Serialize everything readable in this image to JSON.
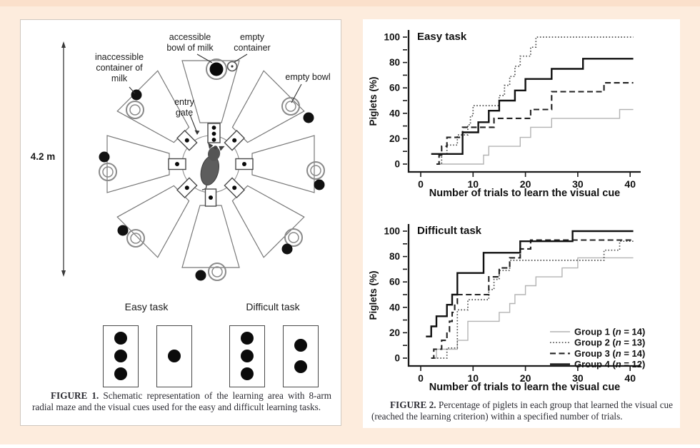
{
  "colors": {
    "page_bg": "#fdecdd",
    "top_strip": "#fbe0cb",
    "panel_bg": "#ffffff",
    "line_group1": "#b3b3b3",
    "line_group2": "#4d4d4d",
    "line_group3": "#222222",
    "line_group4": "#111111"
  },
  "figure1": {
    "scale_label": "4.2 m",
    "maze_labels": {
      "inaccessible": [
        "inaccessible",
        "container of",
        "milk"
      ],
      "accessible": [
        "accessible",
        "bowl of milk"
      ],
      "empty_container": [
        "empty",
        "container"
      ],
      "empty_bowl": [
        "empty bowl"
      ],
      "entry_gate": [
        "entry",
        "gate"
      ]
    },
    "tasks": {
      "easy": {
        "title": "Easy task",
        "cards": [
          3,
          1
        ]
      },
      "difficult": {
        "title": "Difficult task",
        "cards": [
          3,
          2
        ]
      }
    },
    "caption": {
      "lead": "FIGURE 1.",
      "text": "Schematic representation of the learning area with 8-arm radial maze and the visual cues used for the easy and difficult learning tasks."
    }
  },
  "figure2": {
    "caption": {
      "lead": "FIGURE 2.",
      "text": "Percentage of piglets in each group that learned the visual cue (reached the learning criterion) within a specified number of trials."
    }
  },
  "chart_data": [
    {
      "type": "line",
      "subtype": "step-cumulative",
      "title": "Easy task",
      "xlabel": "Number of trials to learn the visual cue",
      "ylabel": "Piglets (%)",
      "xlim": [
        0,
        40
      ],
      "ylim": [
        0,
        100
      ],
      "xticks": [
        0,
        10,
        20,
        30,
        40
      ],
      "yticks": [
        0,
        20,
        40,
        60,
        80,
        100
      ],
      "yticks_minor": [
        10,
        30,
        50,
        70,
        90
      ],
      "grid": false,
      "legend": {
        "show": false
      },
      "series": [
        {
          "name": "Group 1 (n = 14)",
          "label_parts": [
            "Group 1 (",
            "n",
            " = 14)"
          ],
          "style": "light-solid",
          "points": [
            [
              3,
              0
            ],
            [
              12,
              7
            ],
            [
              13,
              14
            ],
            [
              19,
              21
            ],
            [
              21,
              29
            ],
            [
              25,
              36
            ],
            [
              38,
              43
            ]
          ]
        },
        {
          "name": "Group 2 (n = 13)",
          "label_parts": [
            "Group 2 (",
            "n",
            " = 13)"
          ],
          "style": "dotted",
          "points": [
            [
              3.5,
              0
            ],
            [
              4,
              8
            ],
            [
              5,
              15
            ],
            [
              7,
              23
            ],
            [
              9,
              31
            ],
            [
              9.5,
              38
            ],
            [
              10,
              46
            ],
            [
              15,
              54
            ],
            [
              16,
              62
            ],
            [
              17,
              69
            ],
            [
              18,
              77
            ],
            [
              19,
              85
            ],
            [
              21,
              92
            ],
            [
              22,
              100
            ]
          ]
        },
        {
          "name": "Group 3 (n = 14)",
          "label_parts": [
            "Group 3 (",
            "n",
            " = 14)"
          ],
          "style": "dashed",
          "points": [
            [
              3,
              0
            ],
            [
              3.5,
              7
            ],
            [
              4,
              14
            ],
            [
              5,
              21
            ],
            [
              8,
              29
            ],
            [
              14,
              36
            ],
            [
              21,
              43
            ],
            [
              25,
              57
            ],
            [
              35,
              64
            ]
          ]
        },
        {
          "name": "Group 4 (n = 12)",
          "label_parts": [
            "Group 4 (",
            "n",
            " = 12)"
          ],
          "style": "solid",
          "points": [
            [
              2,
              8
            ],
            [
              8,
              25
            ],
            [
              11,
              33
            ],
            [
              13,
              42
            ],
            [
              15,
              50
            ],
            [
              18,
              58
            ],
            [
              20,
              67
            ],
            [
              25,
              75
            ],
            [
              31,
              83
            ]
          ]
        }
      ]
    },
    {
      "type": "line",
      "subtype": "step-cumulative",
      "title": "Difficult task",
      "xlabel": "Number of trials to learn the visual cue",
      "ylabel": "Piglets (%)",
      "xlim": [
        0,
        40
      ],
      "ylim": [
        0,
        100
      ],
      "xticks": [
        0,
        10,
        20,
        30,
        40
      ],
      "yticks": [
        0,
        20,
        40,
        60,
        80,
        100
      ],
      "yticks_minor": [
        10,
        30,
        50,
        70,
        90
      ],
      "grid": false,
      "legend": {
        "show": true,
        "position": "right-middle"
      },
      "series": [
        {
          "name": "Group 1 (n = 14)",
          "label_parts": [
            "Group 1 (",
            "n",
            " = 14)"
          ],
          "style": "light-solid",
          "points": [
            [
              2,
              0
            ],
            [
              3,
              7
            ],
            [
              7,
              14
            ],
            [
              9,
              29
            ],
            [
              15,
              36
            ],
            [
              17,
              43
            ],
            [
              18,
              50
            ],
            [
              20,
              57
            ],
            [
              22,
              64
            ],
            [
              27,
              71
            ],
            [
              30,
              79
            ]
          ]
        },
        {
          "name": "Group 2 (n = 13)",
          "label_parts": [
            "Group 2 (",
            "n",
            " = 13)"
          ],
          "style": "dotted",
          "points": [
            [
              2,
              0
            ],
            [
              5,
              8
            ],
            [
              7,
              38
            ],
            [
              9,
              46
            ],
            [
              13,
              54
            ],
            [
              14,
              62
            ],
            [
              15,
              69
            ],
            [
              17,
              77
            ],
            [
              35,
              85
            ],
            [
              38,
              92
            ]
          ]
        },
        {
          "name": "Group 3 (n = 14)",
          "label_parts": [
            "Group 3 (",
            "n",
            " = 14)"
          ],
          "style": "dashed",
          "points": [
            [
              2,
              0
            ],
            [
              2.5,
              7
            ],
            [
              4,
              14
            ],
            [
              5,
              21
            ],
            [
              5.5,
              29
            ],
            [
              6,
              36
            ],
            [
              6.5,
              43
            ],
            [
              7,
              50
            ],
            [
              13,
              64
            ],
            [
              15,
              71
            ],
            [
              17,
              79
            ],
            [
              19,
              86
            ],
            [
              21,
              93
            ]
          ]
        },
        {
          "name": "Group 4 (n = 12)",
          "label_parts": [
            "Group 4 (",
            "n",
            " = 12)"
          ],
          "style": "solid",
          "points": [
            [
              1,
              17
            ],
            [
              2,
              25
            ],
            [
              3,
              33
            ],
            [
              5,
              42
            ],
            [
              6,
              50
            ],
            [
              7,
              67
            ],
            [
              12,
              83
            ],
            [
              19,
              92
            ],
            [
              29,
              100
            ]
          ]
        }
      ]
    }
  ]
}
